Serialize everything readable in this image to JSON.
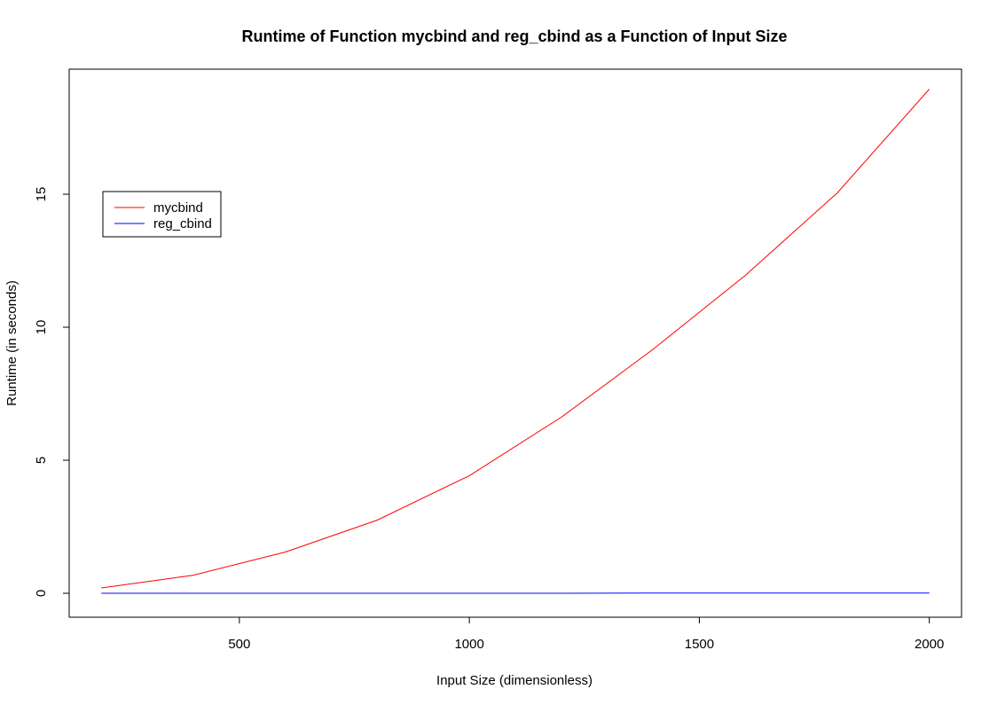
{
  "chart_data": {
    "type": "line",
    "title": "Runtime of Function mycbind and reg_cbind as a Function of Input Size",
    "xlabel": "Input Size (dimensionless)",
    "ylabel": "Runtime (in seconds)",
    "xlim": [
      130,
      2070
    ],
    "ylim": [
      -0.9,
      19.7
    ],
    "xticks": [
      500,
      1000,
      1500,
      2000
    ],
    "yticks": [
      0,
      5,
      10,
      15
    ],
    "x": [
      200,
      400,
      600,
      800,
      1000,
      1200,
      1400,
      1600,
      1800,
      2000
    ],
    "series": [
      {
        "name": "mycbind",
        "color": "#ff0000",
        "values": [
          0.2,
          0.68,
          1.55,
          2.75,
          4.42,
          6.62,
          9.18,
          11.95,
          15.05,
          18.95
        ]
      },
      {
        "name": "reg_cbind",
        "color": "#0000ff",
        "values": [
          0.0,
          0.0,
          0.0,
          0.0,
          0.0,
          0.0,
          0.01,
          0.01,
          0.01,
          0.01
        ]
      }
    ],
    "legend": {
      "position": "top-left",
      "box": true
    },
    "grid": false
  }
}
